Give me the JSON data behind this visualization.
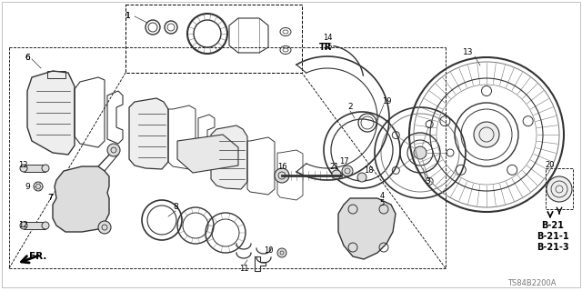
{
  "bg_color": "#ffffff",
  "diagram_code": "TS84B2200A",
  "ref_labels": [
    "B-21",
    "B-21-1",
    "B-21-3"
  ],
  "gray": "#333333",
  "lgray": "#777777",
  "llgray": "#bbbbbb"
}
